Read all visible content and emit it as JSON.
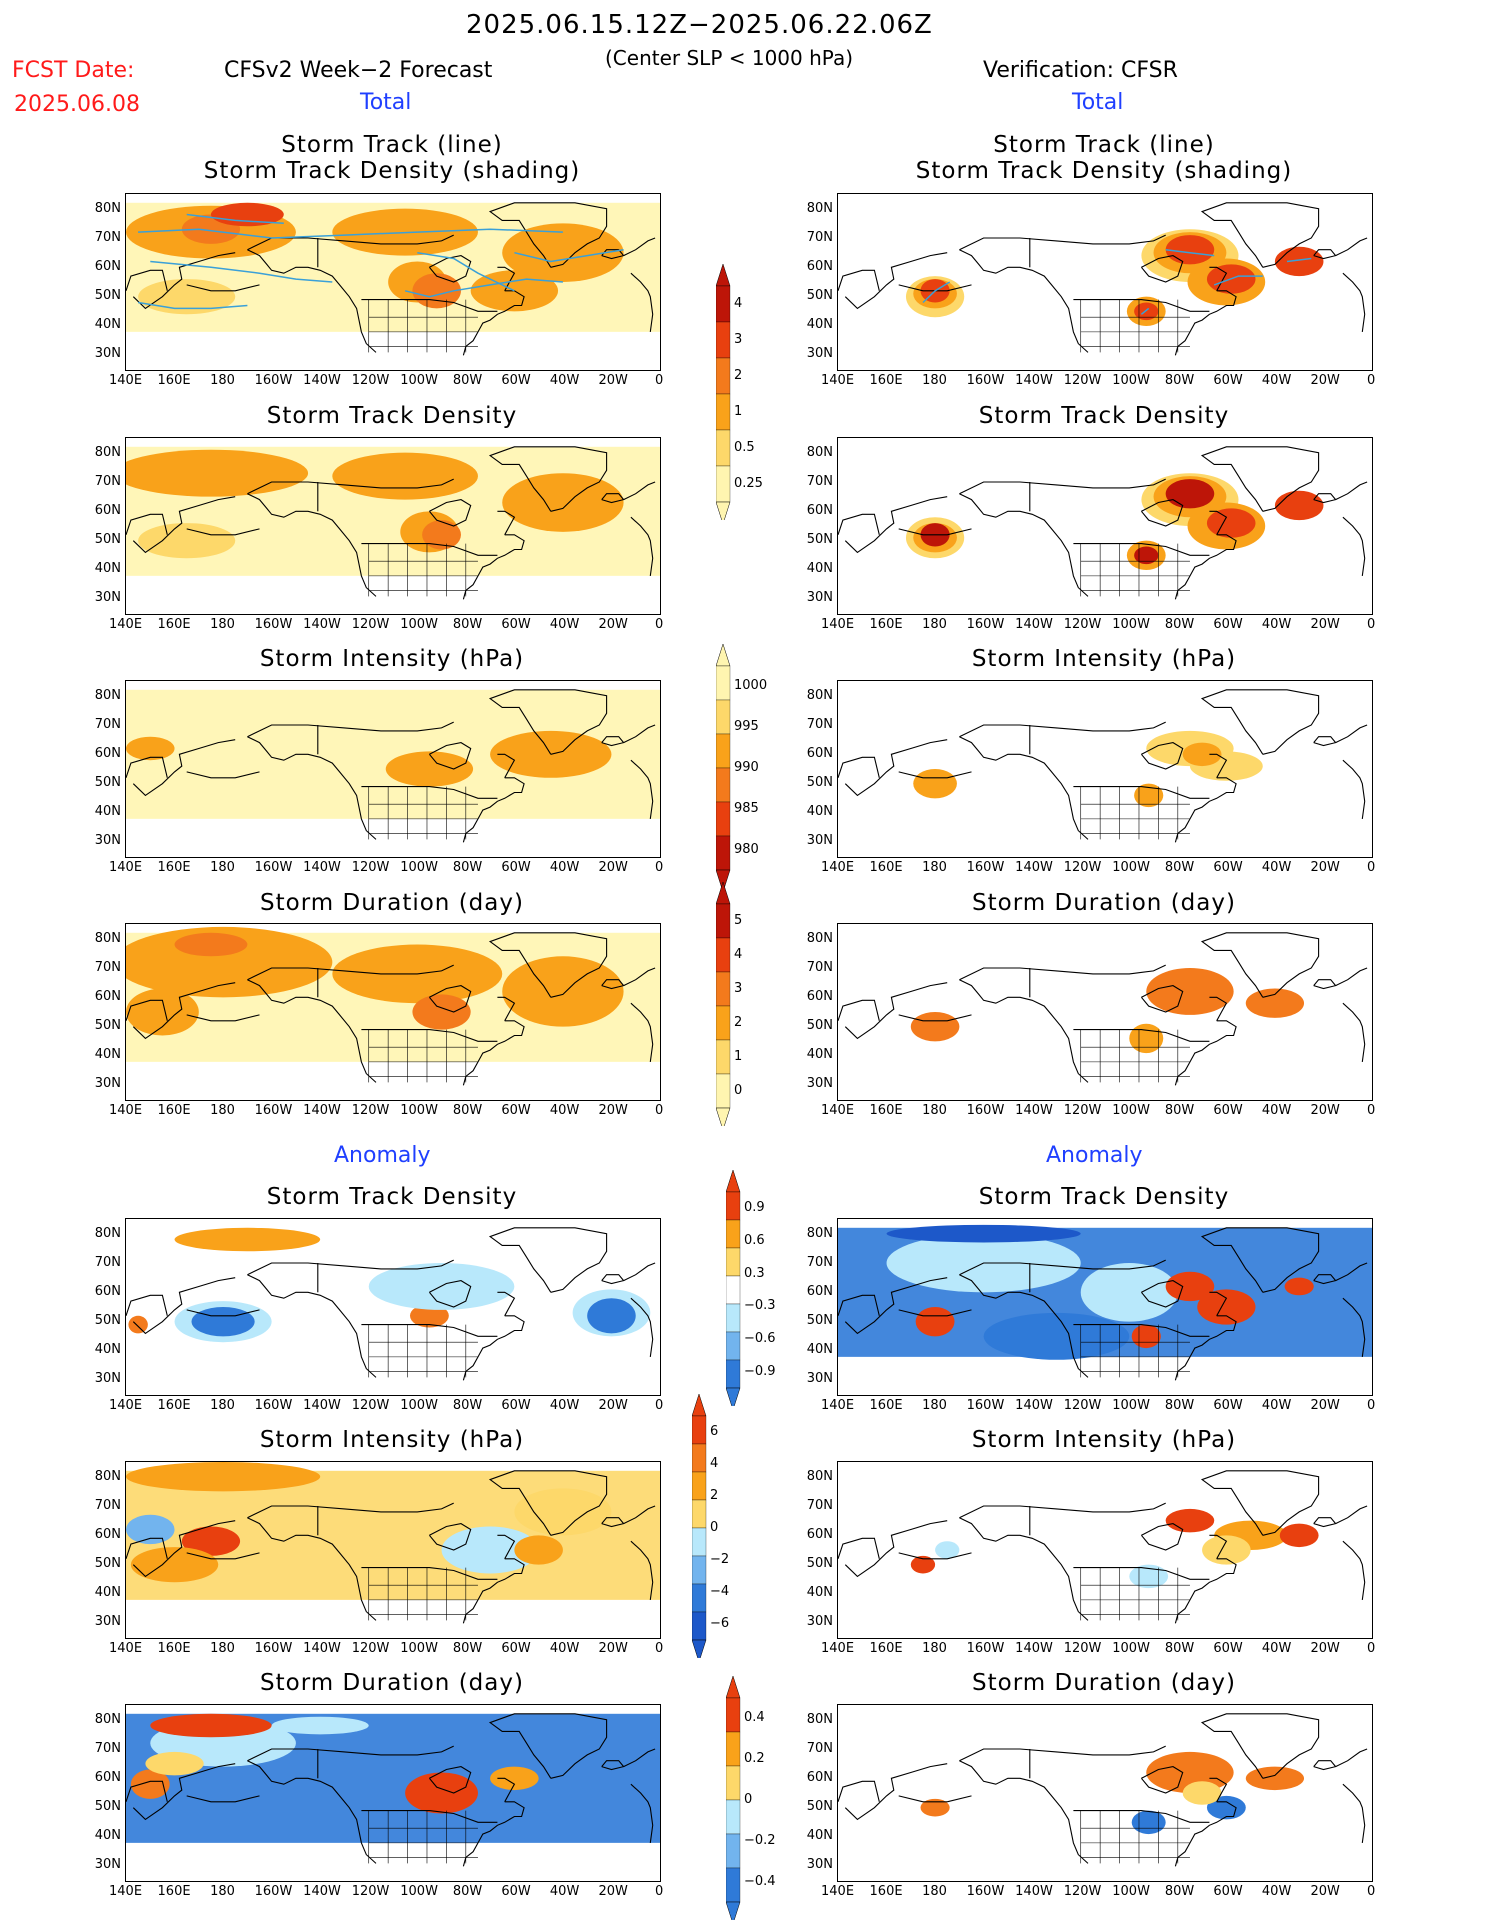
{
  "header": {
    "title": "2025.06.15.12Z−2025.06.22.06Z",
    "subtitle": "(Center SLP < 1000 hPa)",
    "fcst_label": "FCST Date:",
    "fcst_date": "2025.06.08",
    "left_source": "CFSv2 Week−2 Forecast",
    "right_source": "Verification: CFSR"
  },
  "sections": {
    "total": "Total",
    "anomaly": "Anomaly"
  },
  "panel_titles": {
    "track_line": "Storm Track (line)",
    "track_shading": "Storm Track Density (shading)",
    "density": "Storm Track Density",
    "intensity": "Storm Intensity (hPa)",
    "duration": "Storm Duration (day)"
  },
  "axes": {
    "lat_ticks": [
      "80N",
      "70N",
      "60N",
      "50N",
      "40N",
      "30N"
    ],
    "lon_ticks": [
      "140E",
      "160E",
      "180",
      "160W",
      "140W",
      "120W",
      "100W",
      "80W",
      "60W",
      "40W",
      "20W",
      "0"
    ]
  },
  "colorbars": {
    "density_total": [
      "4",
      "3",
      "2",
      "1",
      "0.5",
      "0.25"
    ],
    "intensity_total": [
      "1000",
      "995",
      "990",
      "985",
      "980"
    ],
    "duration_total": [
      "5",
      "4",
      "3",
      "2",
      "1",
      "0"
    ],
    "density_anom": [
      "0.9",
      "0.6",
      "0.3",
      "−0.3",
      "−0.6",
      "−0.9"
    ],
    "intensity_anom": [
      "6",
      "4",
      "2",
      "0",
      "−2",
      "−4",
      "−6"
    ],
    "duration_anom": [
      "0.4",
      "0.2",
      "0",
      "−0.2",
      "−0.4"
    ]
  },
  "colors": {
    "light_yellow": "#fff5b0",
    "yellow": "#fdd86a",
    "orange": "#f9a21a",
    "dark_orange": "#f37a1c",
    "red": "#e8400f",
    "dark_red": "#bd1508",
    "light_blue": "#b8e8fb",
    "mid_blue": "#72b4ee",
    "blue": "#2f7ad8",
    "dark_blue": "#1d58c9",
    "track_line": "#3aa0d8"
  }
}
